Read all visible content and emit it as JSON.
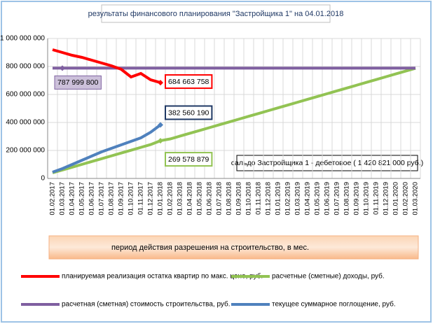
{
  "chart_data": {
    "type": "line",
    "title": "результаты финансового планирования \"Застройщика  1\" на 04.01.2018",
    "note": "сальдо Застройщика 1 - дебетовое ( 1  420 821 000 руб.)",
    "x_label": "период  действия разрешения на строительство, в мес.",
    "categories": [
      "01.02.2017",
      "01.03.2017",
      "01.04.2017",
      "01.05.2017",
      "01.06.2017",
      "01.07.2017",
      "01.08.2017",
      "01.09.2017",
      "01.10.2017",
      "01.11.2017",
      "01.12.2017",
      "01.01.2018",
      "01.02.2018",
      "01.03.2018",
      "01.04.2018",
      "01.05.2018",
      "01.06.2018",
      "01.07.2018",
      "01.08.2018",
      "01.09.2018",
      "01.10.2018",
      "01.11.2018",
      "01.12.2018",
      "01.01.2019",
      "01.02.2019",
      "01.03.2019",
      "01.04.2019",
      "01.05.2019",
      "01.06.2019",
      "01.07.2019",
      "01.08.2019",
      "01.09.2019",
      "01.10.2019",
      "01.11.2019",
      "01.12.2019",
      "01.01.2020",
      "01.02.2020",
      "01.03.2020"
    ],
    "ylim": [
      0,
      1000000000
    ],
    "yticks": [
      0,
      {
        "value": 200000000,
        "label": "200 000 000"
      },
      {
        "value": 400000000,
        "label": "400 000 000"
      },
      {
        "value": 600000000,
        "label": "600 000 000"
      },
      {
        "value": 800000000,
        "label": "800 000 000"
      },
      {
        "value": 1000000000,
        "label": "1 000 000 000"
      }
    ],
    "grid": true,
    "series": [
      {
        "name": "планируемая реализация остатка квартир по макс. цене, руб.",
        "color": "#ff0000",
        "values": [
          920000000,
          900000000,
          880000000,
          865000000,
          845000000,
          825000000,
          805000000,
          780000000,
          725000000,
          750000000,
          705000000,
          684663758,
          null,
          null,
          null,
          null,
          null,
          null,
          null,
          null,
          null,
          null,
          null,
          null,
          null,
          null,
          null,
          null,
          null,
          null,
          null,
          null,
          null,
          null,
          null,
          null,
          null,
          null
        ],
        "value_labels": [
          null,
          null,
          null,
          null,
          null,
          null,
          null,
          null,
          null,
          null,
          null,
          "684 663 758",
          null,
          null,
          null,
          null,
          null,
          null,
          null,
          null,
          null,
          null,
          null,
          null,
          null,
          null,
          null,
          null,
          null,
          null,
          null,
          null,
          null,
          null,
          null,
          null,
          null,
          null
        ]
      },
      {
        "name": "расчетные (сметные) доходы, руб.",
        "color": "#92c353",
        "values": [
          40000000,
          60200000,
          80400000,
          100600000,
          120800000,
          141000000,
          161200000,
          181400000,
          201600000,
          221800000,
          242000000,
          269578879,
          282400000,
          302600000,
          322800000,
          343000000,
          363200000,
          383400000,
          403600000,
          423800000,
          444000000,
          464200000,
          484400000,
          504600000,
          524800000,
          545000000,
          565200000,
          585400000,
          605600000,
          625800000,
          646000000,
          666200000,
          686400000,
          706600000,
          726800000,
          747000000,
          767200000,
          787400000
        ],
        "value_labels": [
          null,
          null,
          null,
          null,
          null,
          null,
          null,
          null,
          null,
          null,
          null,
          "269 578 879",
          null,
          null,
          null,
          null,
          null,
          null,
          null,
          null,
          null,
          null,
          null,
          null,
          null,
          null,
          null,
          null,
          null,
          null,
          null,
          null,
          null,
          null,
          null,
          null,
          null,
          null
        ]
      },
      {
        "name": "расчетная (сметная) стоимость строительства, руб.",
        "color": "#7f5fa0",
        "values": [
          787999800,
          787999800,
          787999800,
          787999800,
          787999800,
          787999800,
          787999800,
          787999800,
          787999800,
          787999800,
          787999800,
          787999800,
          787999800,
          787999800,
          787999800,
          787999800,
          787999800,
          787999800,
          787999800,
          787999800,
          787999800,
          787999800,
          787999800,
          787999800,
          787999800,
          787999800,
          787999800,
          787999800,
          787999800,
          787999800,
          787999800,
          787999800,
          787999800,
          787999800,
          787999800,
          787999800,
          787999800,
          787999800
        ],
        "value_labels": [
          null,
          "787 999 800",
          null,
          null,
          null,
          null,
          null,
          null,
          null,
          null,
          null,
          null,
          null,
          null,
          null,
          null,
          null,
          null,
          null,
          null,
          null,
          null,
          null,
          null,
          null,
          null,
          null,
          null,
          null,
          null,
          null,
          null,
          null,
          null,
          null,
          null,
          null,
          null
        ]
      },
      {
        "name": "текущее суммарное поглощение, руб.",
        "color": "#4f81bd",
        "values": [
          45000000,
          70000000,
          100000000,
          130000000,
          160000000,
          190000000,
          215000000,
          240000000,
          265000000,
          290000000,
          330000000,
          382560190,
          null,
          null,
          null,
          null,
          null,
          null,
          null,
          null,
          null,
          null,
          null,
          null,
          null,
          null,
          null,
          null,
          null,
          null,
          null,
          null,
          null,
          null,
          null,
          null,
          null,
          null
        ],
        "value_labels": [
          null,
          null,
          null,
          null,
          null,
          null,
          null,
          null,
          null,
          null,
          null,
          "382 560 190",
          null,
          null,
          null,
          null,
          null,
          null,
          null,
          null,
          null,
          null,
          null,
          null,
          null,
          null,
          null,
          null,
          null,
          null,
          null,
          null,
          null,
          null,
          null,
          null,
          null,
          null
        ]
      }
    ]
  }
}
